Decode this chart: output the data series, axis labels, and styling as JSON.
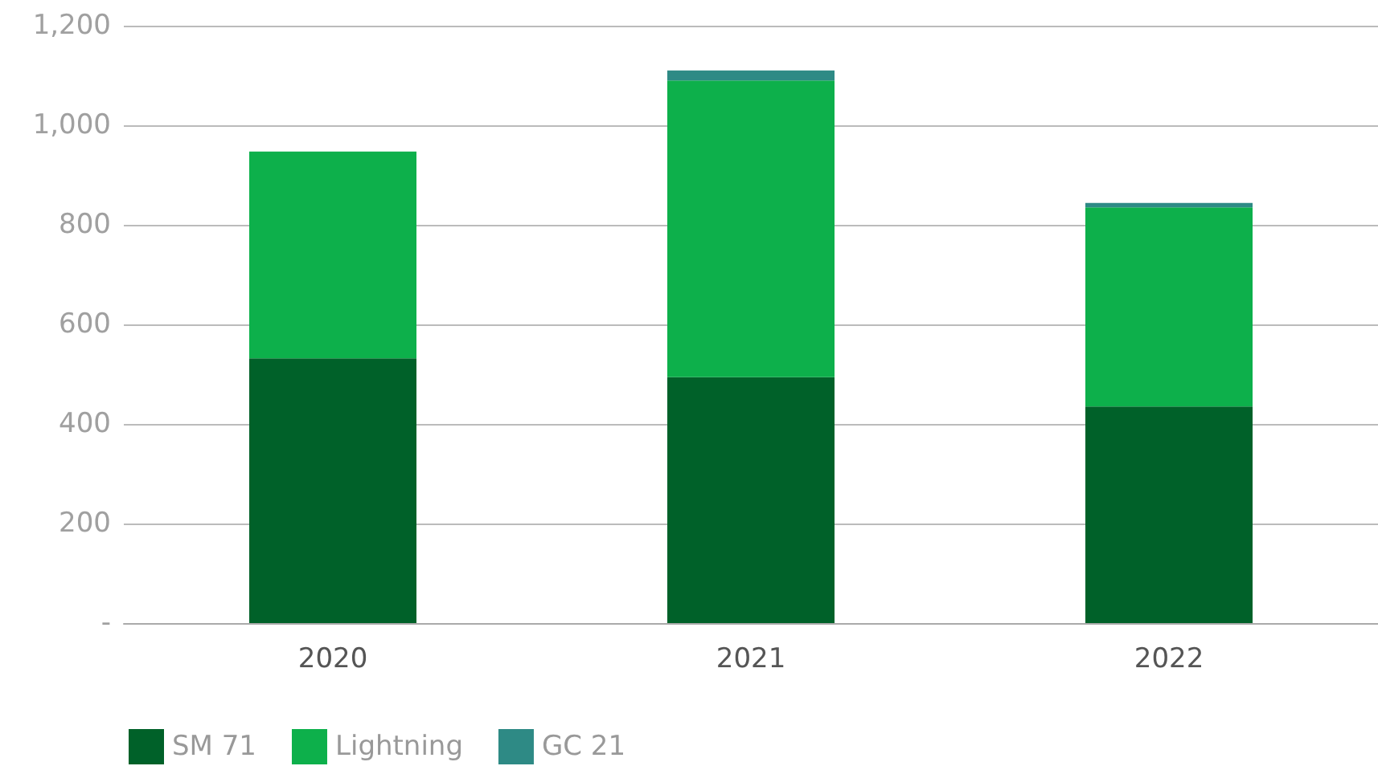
{
  "chart_data": {
    "type": "bar",
    "stacked": true,
    "categories": [
      "2020",
      "2021",
      "2022"
    ],
    "series": [
      {
        "name": "SM 71",
        "color": "#006129",
        "values": [
          532,
          494,
          435
        ]
      },
      {
        "name": "Lightning",
        "color": "#0db04b",
        "values": [
          415,
          596,
          400
        ]
      },
      {
        "name": "GC 21",
        "color": "#2e8a85",
        "values": [
          null,
          20,
          9
        ]
      }
    ],
    "ylim": [
      0,
      1200
    ],
    "yticks": [
      {
        "value": 0,
        "label": "-"
      },
      200,
      400,
      600,
      800,
      {
        "value": 1000,
        "label": "1,000"
      },
      {
        "value": 1200,
        "label": "1,200"
      }
    ],
    "grid": "y",
    "legend": "bottom left"
  }
}
